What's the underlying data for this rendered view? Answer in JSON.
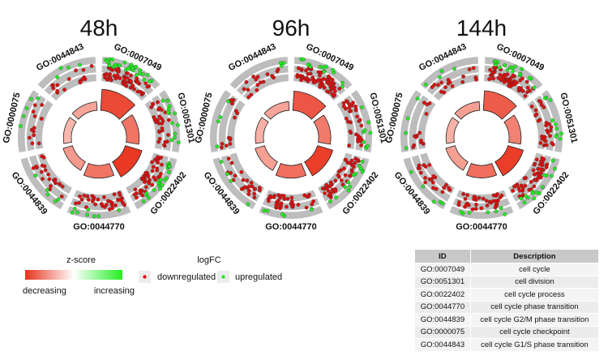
{
  "chart_data": {
    "type": "circular_go_plot",
    "panels": [
      {
        "title": "48h",
        "terms": [
          {
            "id": "GO:0007049",
            "zscore": -2.6,
            "down": 62,
            "up": 28
          },
          {
            "id": "GO:0051301",
            "zscore": -1.9,
            "down": 30,
            "up": 14
          },
          {
            "id": "GO:0022402",
            "zscore": -2.9,
            "down": 45,
            "up": 24
          },
          {
            "id": "GO:0044770",
            "zscore": -1.9,
            "down": 36,
            "up": 8
          },
          {
            "id": "GO:0044839",
            "zscore": -1.3,
            "down": 22,
            "up": 5
          },
          {
            "id": "GO:0000075",
            "zscore": -0.8,
            "down": 12,
            "up": 5
          },
          {
            "id": "GO:0044843",
            "zscore": -1.1,
            "down": 16,
            "up": 4
          }
        ]
      },
      {
        "title": "96h",
        "terms": [
          {
            "id": "GO:0007049",
            "zscore": -2.4,
            "down": 66,
            "up": 14
          },
          {
            "id": "GO:0051301",
            "zscore": -1.8,
            "down": 32,
            "up": 9
          },
          {
            "id": "GO:0022402",
            "zscore": -2.8,
            "down": 48,
            "up": 14
          },
          {
            "id": "GO:0044770",
            "zscore": -2.0,
            "down": 38,
            "up": 6
          },
          {
            "id": "GO:0044839",
            "zscore": -1.2,
            "down": 24,
            "up": 4
          },
          {
            "id": "GO:0000075",
            "zscore": -0.9,
            "down": 14,
            "up": 4
          },
          {
            "id": "GO:0044843",
            "zscore": -1.1,
            "down": 18,
            "up": 3
          }
        ]
      },
      {
        "title": "144h",
        "terms": [
          {
            "id": "GO:0007049",
            "zscore": -2.3,
            "down": 64,
            "up": 18
          },
          {
            "id": "GO:0051301",
            "zscore": -1.7,
            "down": 30,
            "up": 10
          },
          {
            "id": "GO:0022402",
            "zscore": -2.8,
            "down": 46,
            "up": 16
          },
          {
            "id": "GO:0044770",
            "zscore": -2.0,
            "down": 36,
            "up": 7
          },
          {
            "id": "GO:0044839",
            "zscore": -1.2,
            "down": 22,
            "up": 5
          },
          {
            "id": "GO:0000075",
            "zscore": -0.9,
            "down": 13,
            "up": 4
          },
          {
            "id": "GO:0044843",
            "zscore": -1.2,
            "down": 17,
            "up": 4
          }
        ]
      }
    ],
    "legend": {
      "zscore_title": "z-score",
      "zscore_low": "decreasing",
      "zscore_high": "increasing",
      "logfc_title": "logFC",
      "down_label": "downregulated",
      "up_label": "upregulated"
    },
    "colors": {
      "down": "#dd0f0f",
      "up": "#22ee22",
      "track": "#bdbdbd",
      "zlow": "#e8321c",
      "zmid": "#ffffff",
      "zhigh": "#22ee22"
    }
  },
  "table": {
    "headers": [
      "ID",
      "Description"
    ],
    "rows": [
      [
        "GO:0007049",
        "cell cycle"
      ],
      [
        "GO:0051301",
        "cell division"
      ],
      [
        "GO:0022402",
        "cell cycle process"
      ],
      [
        "GO:0044770",
        "cell cycle phase transition"
      ],
      [
        "GO:0044839",
        "cell cycle G2/M phase transition"
      ],
      [
        "GO:0000075",
        "cell cycle checkpoint"
      ],
      [
        "GO:0044843",
        "cell cycle G1/S phase transition"
      ]
    ]
  }
}
